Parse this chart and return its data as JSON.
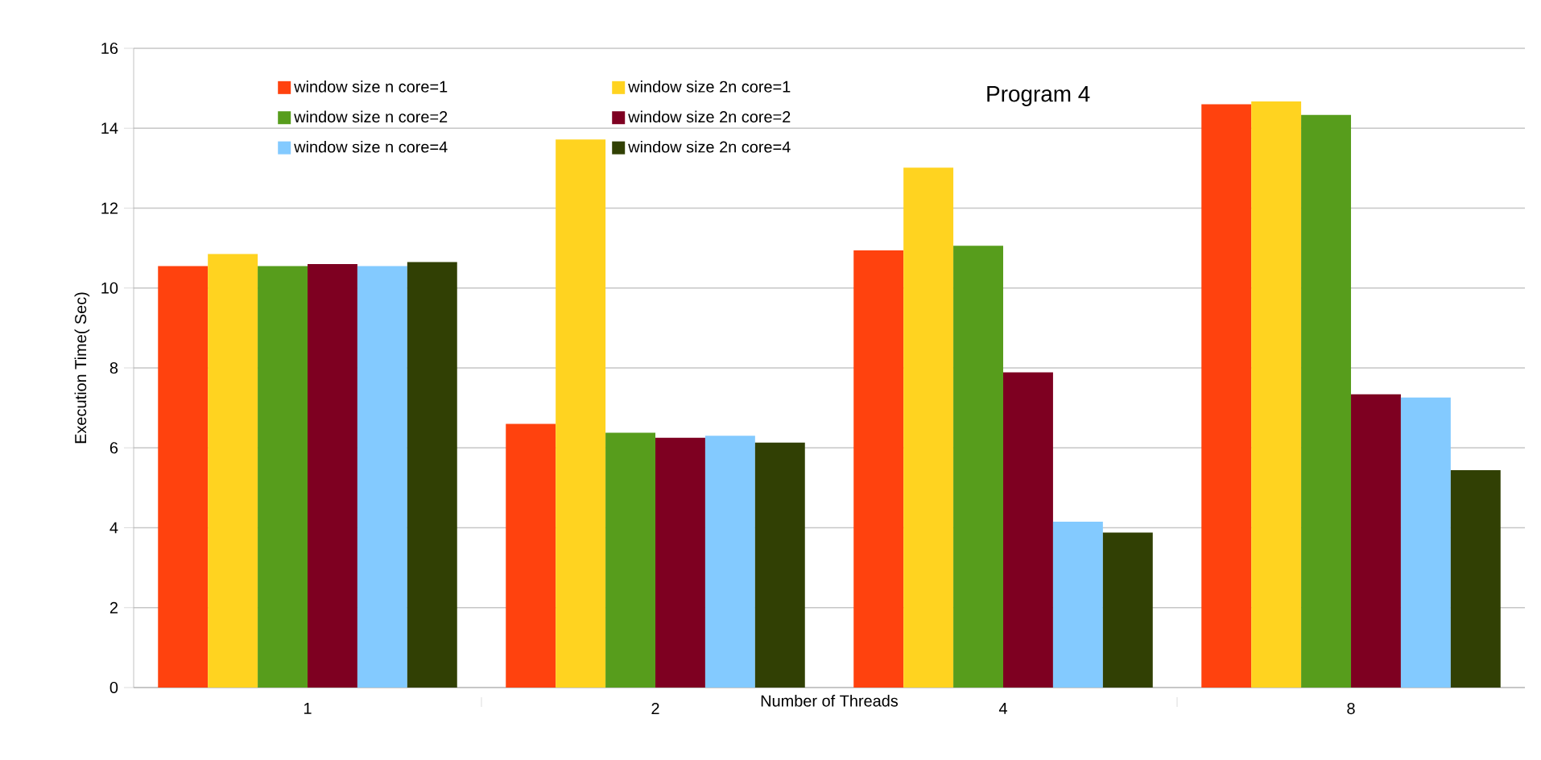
{
  "chart_data": {
    "type": "bar",
    "title": "Program 4",
    "xlabel": "Number of Threads",
    "ylabel": "Execution Time( Sec)",
    "categories": [
      "1",
      "2",
      "4",
      "8"
    ],
    "series": [
      {
        "name": "window size n core=1",
        "color": "#ff420e",
        "values": [
          10.55,
          6.6,
          10.94,
          14.6
        ]
      },
      {
        "name": "window size 2n core=1",
        "color": "#ffd320",
        "values": [
          10.85,
          13.72,
          13.01,
          14.67
        ]
      },
      {
        "name": "window size n core=2",
        "color": "#579d1c",
        "values": [
          10.55,
          6.38,
          11.06,
          14.33
        ]
      },
      {
        "name": "window size 2n core=2",
        "color": "#7e0021",
        "values": [
          10.6,
          6.25,
          7.89,
          7.34
        ]
      },
      {
        "name": "window size n core=4",
        "color": "#83caff",
        "values": [
          10.55,
          6.3,
          4.15,
          7.26
        ]
      },
      {
        "name": "window size 2n core=4",
        "color": "#314004",
        "values": [
          10.65,
          6.13,
          3.88,
          5.44
        ]
      }
    ],
    "ylim": [
      0,
      16
    ],
    "yticks": [
      0,
      2,
      4,
      6,
      8,
      10,
      12,
      14,
      16
    ],
    "grid": "y",
    "legend": "top left"
  }
}
